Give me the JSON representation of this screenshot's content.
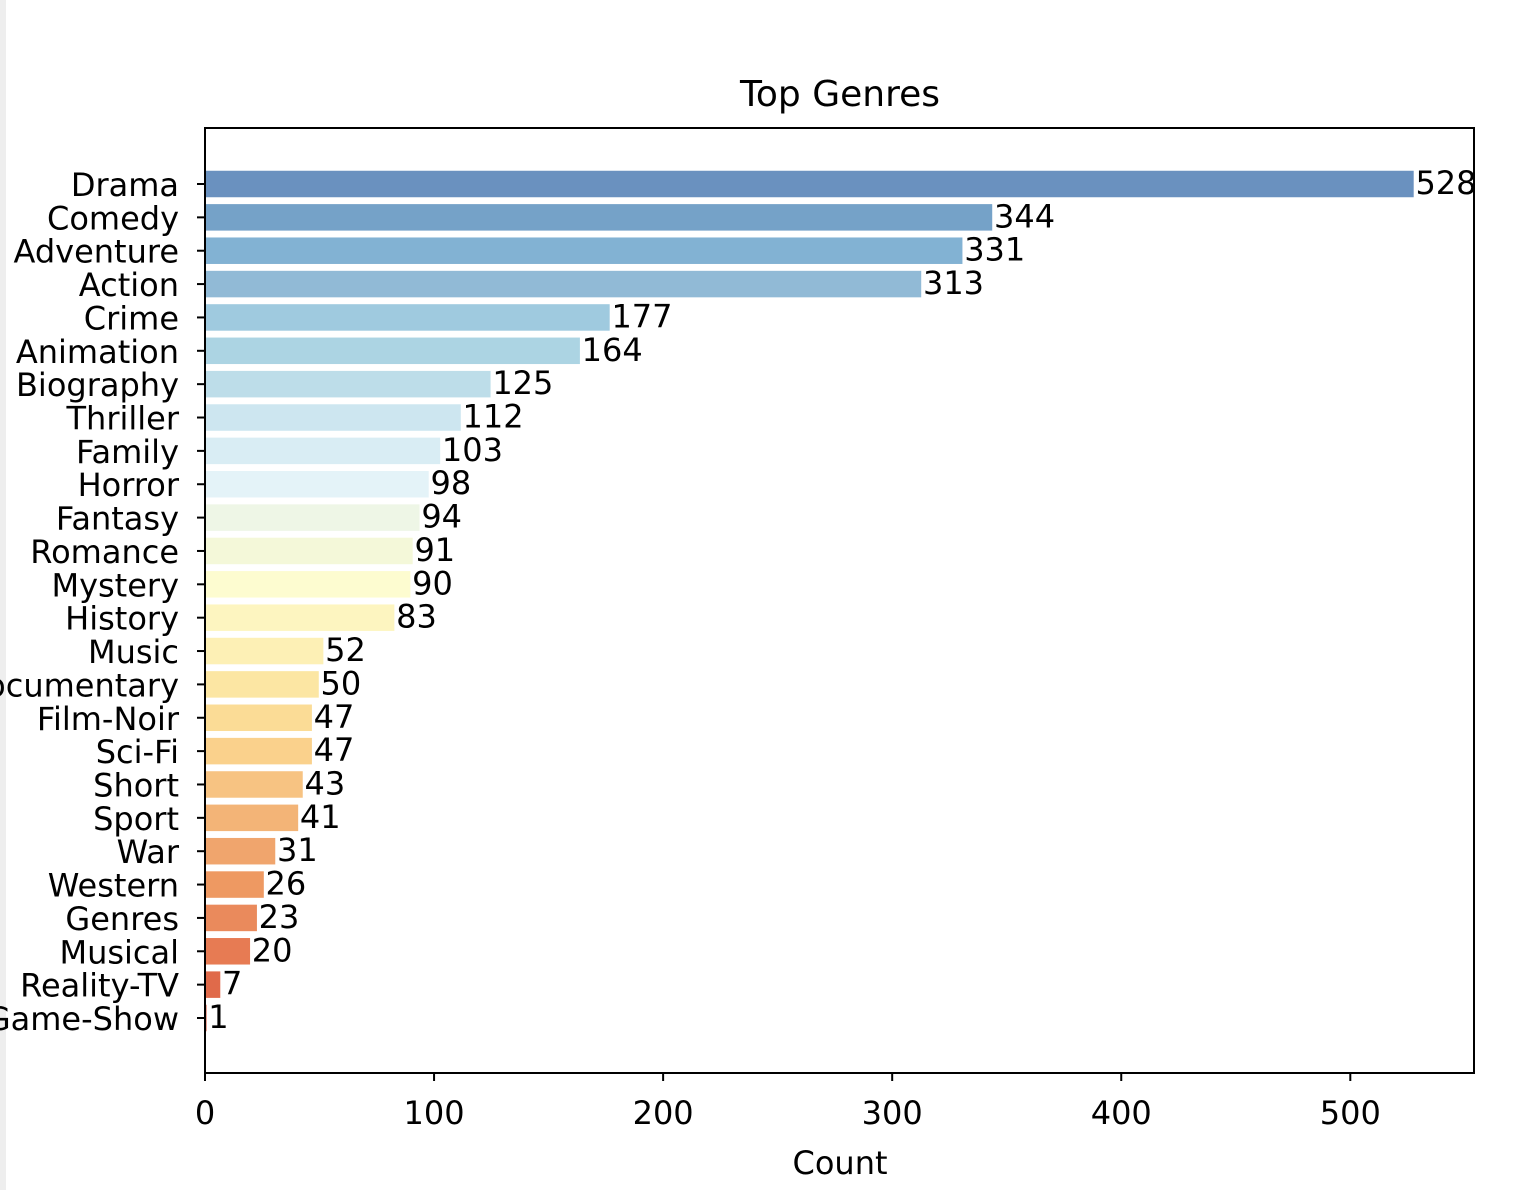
{
  "chart_data": {
    "type": "bar",
    "orientation": "horizontal",
    "title": "Top Genres",
    "xlabel": "Count",
    "ylabel": "",
    "xlim": [
      0,
      554
    ],
    "xticks": [
      0,
      100,
      200,
      300,
      400,
      500
    ],
    "grid": false,
    "colormap": "RdYlBu_r",
    "categories": [
      "Drama",
      "Comedy",
      "Adventure",
      "Action",
      "Crime",
      "Animation",
      "Biography",
      "Thriller",
      "Family",
      "Horror",
      "Fantasy",
      "Romance",
      "Mystery",
      "History",
      "Music",
      "Documentary",
      "Film-Noir",
      "Sci-Fi",
      "Short",
      "Sport",
      "War",
      "Western",
      "Genres",
      "Musical",
      "Reality-TV",
      "Game-Show"
    ],
    "values": [
      528,
      344,
      331,
      313,
      177,
      164,
      125,
      112,
      103,
      98,
      94,
      91,
      90,
      83,
      52,
      50,
      47,
      47,
      43,
      41,
      31,
      26,
      23,
      20,
      7,
      1
    ],
    "colors": [
      "#6a91bf",
      "#75a2c8",
      "#82b2d3",
      "#91bad6",
      "#9fcadf",
      "#acd4e3",
      "#bddde9",
      "#cde6f0",
      "#d9edf4",
      "#e4f3f8",
      "#eef6e6",
      "#f4f8d9",
      "#fdfcd0",
      "#fdf5c0",
      "#fdf0b5",
      "#fce6a3",
      "#fbdc96",
      "#fad18c",
      "#f7c382",
      "#f3b477",
      "#f0a56d",
      "#ee9962",
      "#ea8a5c",
      "#e77b53",
      "#e06a4a",
      "#d9563e"
    ]
  }
}
